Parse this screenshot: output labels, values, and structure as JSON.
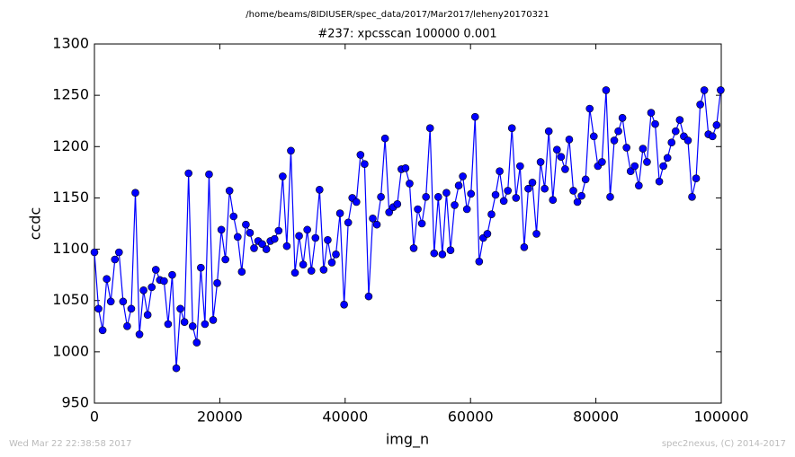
{
  "chart_data": {
    "type": "line",
    "title": "/home/beams/8IDIUSER/spec_data/2017/Mar2017/leheny20170321",
    "subtitle": "#237: xpcsscan 100000 0.001",
    "x_label": "img_n",
    "y_label": "ccdc",
    "footer_left": "Wed Mar 22 22:38:58 2017",
    "footer_right": "spec2nexus, (C) 2014-2017",
    "xlim": [
      0,
      100000
    ],
    "xticks": [
      0,
      20000,
      40000,
      60000,
      80000,
      100000
    ],
    "ylim": [
      950,
      1300
    ],
    "yticks": [
      950,
      1000,
      1050,
      1100,
      1150,
      1200,
      1250,
      1300
    ],
    "x": [
      0,
      653,
      1306,
      1959,
      2612,
      3265,
      3918,
      4571,
      5224,
      5877,
      6530,
      7183,
      7836,
      8489,
      9142,
      9795,
      10448,
      11101,
      11754,
      12407,
      13060,
      13713,
      14366,
      15019,
      15672,
      16325,
      16978,
      17631,
      18284,
      18937,
      19590,
      20243,
      20896,
      21549,
      22202,
      22855,
      23508,
      24161,
      24814,
      25467,
      26120,
      26773,
      27426,
      28079,
      28732,
      29385,
      30038,
      30691,
      31344,
      31997,
      32650,
      33303,
      33956,
      34609,
      35262,
      35915,
      36568,
      37221,
      37874,
      38527,
      39180,
      39833,
      40486,
      41139,
      41792,
      42445,
      43098,
      43751,
      44404,
      45057,
      45710,
      46363,
      47016,
      47669,
      48322,
      48975,
      49628,
      50281,
      50934,
      51587,
      52240,
      52893,
      53546,
      54199,
      54852,
      55505,
      56158,
      56811,
      57464,
      58117,
      58770,
      59423,
      60076,
      60729,
      61382,
      62035,
      62688,
      63341,
      63994,
      64647,
      65300,
      65953,
      66606,
      67259,
      67912,
      68565,
      69218,
      69871,
      70524,
      71177,
      71830,
      72483,
      73136,
      73789,
      74442,
      75095,
      75748,
      76401,
      77054,
      77707,
      78360,
      79013,
      79666,
      80319,
      80972,
      81625,
      82278,
      82931,
      83584,
      84237,
      84890,
      85543,
      86196,
      86849,
      87502,
      88155,
      88808,
      89461,
      90114,
      90767,
      91420,
      92073,
      92726,
      93379,
      94032,
      94685,
      95338,
      95991,
      96644,
      97297,
      97950,
      98603,
      99256,
      99909
    ],
    "series": [
      {
        "color": "#0000ff",
        "values": [
          1097,
          1042,
          1021,
          1071,
          1049,
          1090,
          1097,
          1049,
          1025,
          1042,
          1155,
          1017,
          1060,
          1036,
          1063,
          1080,
          1070,
          1069,
          1027,
          1075,
          984,
          1042,
          1029,
          1174,
          1025,
          1009,
          1082,
          1027,
          1173,
          1031,
          1067,
          1119,
          1090,
          1157,
          1132,
          1112,
          1078,
          1124,
          1116,
          1101,
          1108,
          1105,
          1100,
          1108,
          1110,
          1118,
          1171,
          1103,
          1196,
          1077,
          1113,
          1085,
          1119,
          1079,
          1111,
          1158,
          1080,
          1109,
          1087,
          1095,
          1135,
          1046,
          1126,
          1150,
          1146,
          1192,
          1183,
          1054,
          1130,
          1124,
          1151,
          1208,
          1136,
          1141,
          1144,
          1178,
          1179,
          1164,
          1101,
          1139,
          1125,
          1151,
          1218,
          1096,
          1151,
          1095,
          1155,
          1099,
          1143,
          1162,
          1171,
          1139,
          1154,
          1229,
          1088,
          1111,
          1115,
          1134,
          1153,
          1176,
          1147,
          1157,
          1218,
          1150,
          1181,
          1102,
          1159,
          1165,
          1115,
          1185,
          1159,
          1215,
          1148,
          1197,
          1190,
          1178,
          1207,
          1157,
          1146,
          1152,
          1168,
          1237,
          1210,
          1181,
          1185,
          1255,
          1151,
          1206,
          1215,
          1228,
          1199,
          1176,
          1181,
          1162,
          1198,
          1185,
          1233,
          1222,
          1166,
          1181,
          1189,
          1204,
          1215,
          1226,
          1210,
          1206,
          1151,
          1169,
          1241,
          1255,
          1212,
          1210,
          1221,
          1255
        ]
      }
    ]
  }
}
